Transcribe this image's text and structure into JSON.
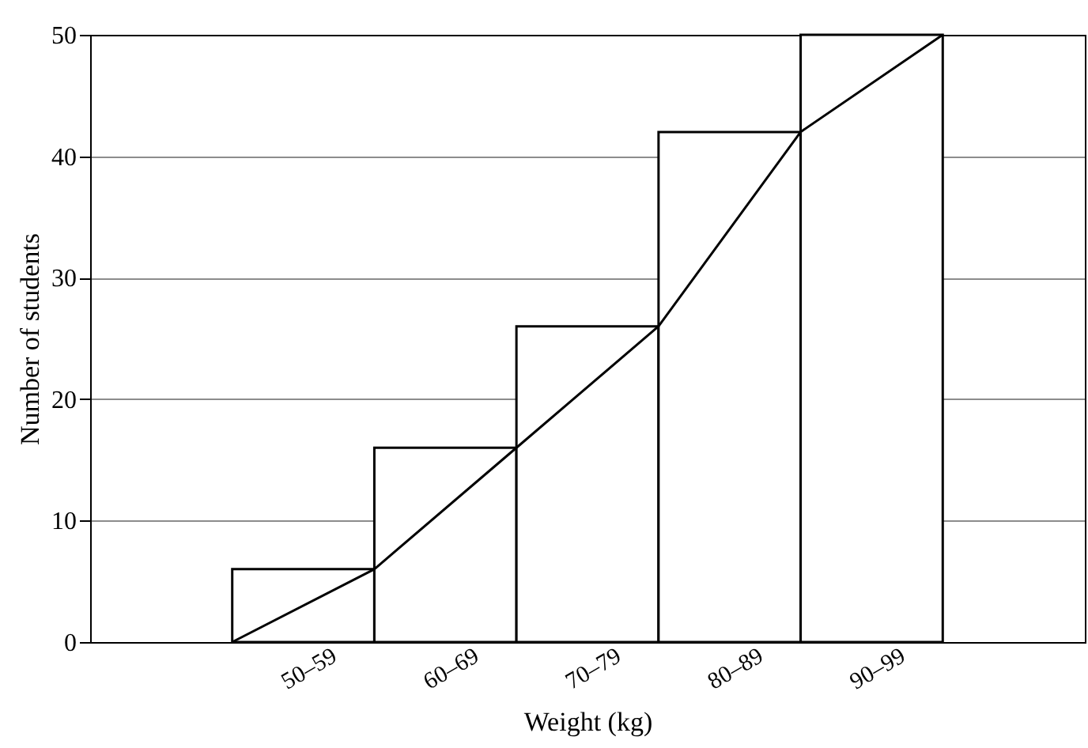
{
  "chart_data": {
    "type": "bar",
    "xlabel": "Weight (kg)",
    "ylabel": "Number of students",
    "categories": [
      null,
      "50–59",
      "60–69",
      "70–79",
      "80–89",
      "90–99",
      null
    ],
    "series": [
      {
        "color": "#ffffff",
        "values": [
          null,
          6,
          16,
          26,
          42,
          50,
          null
        ]
      },
      {
        "type": "line",
        "color": "#000000",
        "values": [
          0,
          6,
          16,
          26,
          42,
          50,
          null
        ]
      }
    ],
    "ylim": [
      0,
      50
    ],
    "yticks": [
      0,
      10,
      20,
      30,
      40,
      50
    ],
    "grid": "y"
  }
}
